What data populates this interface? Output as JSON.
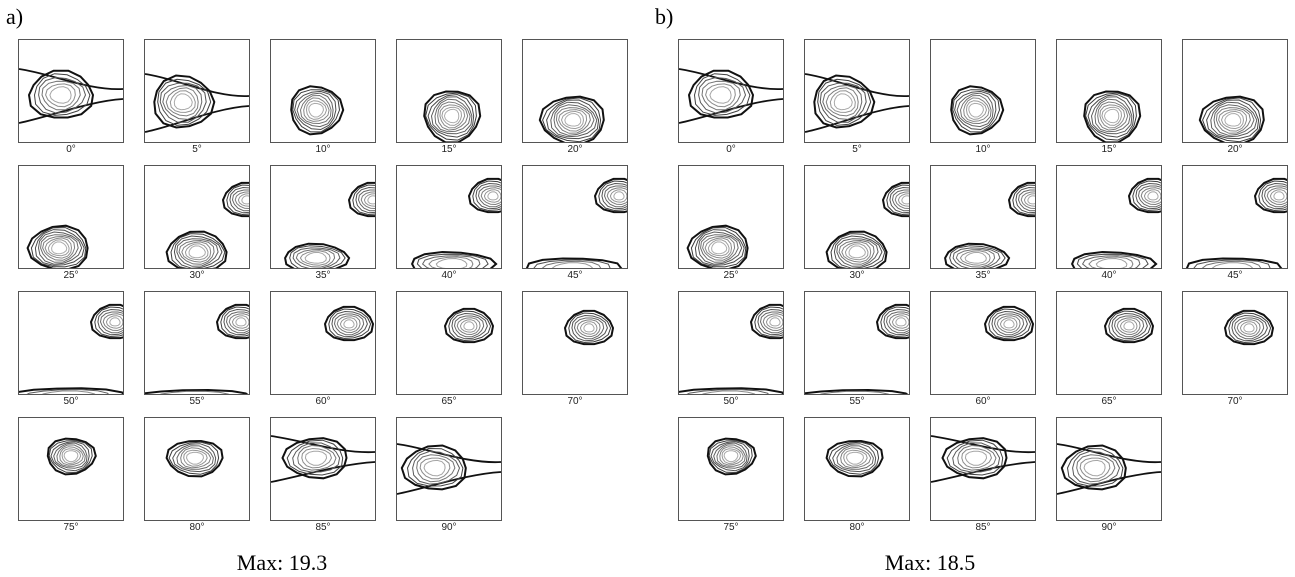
{
  "panels": [
    {
      "label": "a)",
      "max_label": "Max: 19.3",
      "angles": [
        "0°",
        "5°",
        "10°",
        "15°",
        "20°",
        "25°",
        "30°",
        "35°",
        "40°",
        "45°",
        "50°",
        "55°",
        "60°",
        "65°",
        "70°",
        "75°",
        "80°",
        "85°",
        "90°"
      ]
    },
    {
      "label": "b)",
      "max_label": "Max: 18.5",
      "angles": [
        "0°",
        "5°",
        "10°",
        "15°",
        "20°",
        "25°",
        "30°",
        "35°",
        "40°",
        "45°",
        "50°",
        "55°",
        "60°",
        "65°",
        "70°",
        "75°",
        "80°",
        "85°",
        "90°"
      ]
    }
  ]
}
